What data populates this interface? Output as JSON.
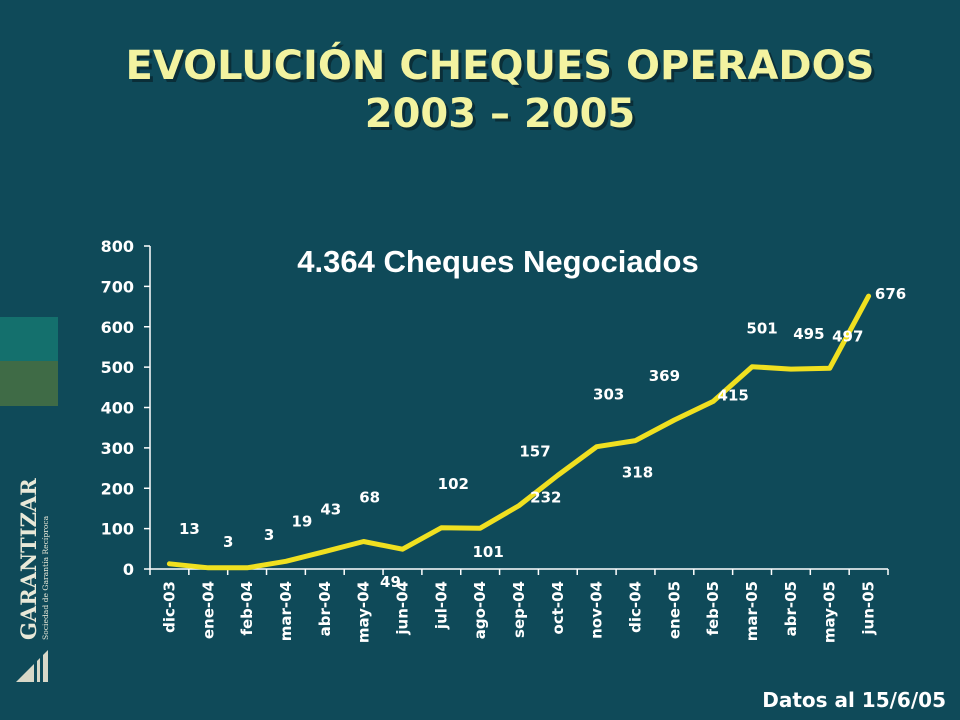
{
  "title_line1": "EVOLUCIÓN CHEQUES  OPERADOS",
  "title_line2": "2003 – 2005",
  "footer": "Datos al 15/6/05",
  "logo": {
    "name": "GARANTIZAR",
    "tagline": "Sociedad de Garantía Recíproca"
  },
  "colors": {
    "background": "#0f4a59",
    "title": "#f3f3a0",
    "line": "#f0e020"
  },
  "chart_data": {
    "type": "line",
    "title": "4.364 Cheques Negociados",
    "categories": [
      "dic-03",
      "ene-04",
      "feb-04",
      "mar-04",
      "abr-04",
      "may-04",
      "jun-04",
      "jul-04",
      "ago-04",
      "sep-04",
      "oct-04",
      "nov-04",
      "dic-04",
      "ene-05",
      "feb-05",
      "mar-05",
      "abr-05",
      "may-05",
      "jun-05"
    ],
    "values": [
      13,
      3,
      3,
      19,
      43,
      68,
      49,
      102,
      101,
      157,
      232,
      303,
      318,
      369,
      415,
      501,
      495,
      497,
      676
    ],
    "ylim": [
      0,
      800
    ],
    "yticks": [
      0,
      100,
      200,
      300,
      400,
      500,
      600,
      700,
      800
    ],
    "xlabel": "",
    "ylabel": "",
    "grid": false,
    "legend": false
  }
}
